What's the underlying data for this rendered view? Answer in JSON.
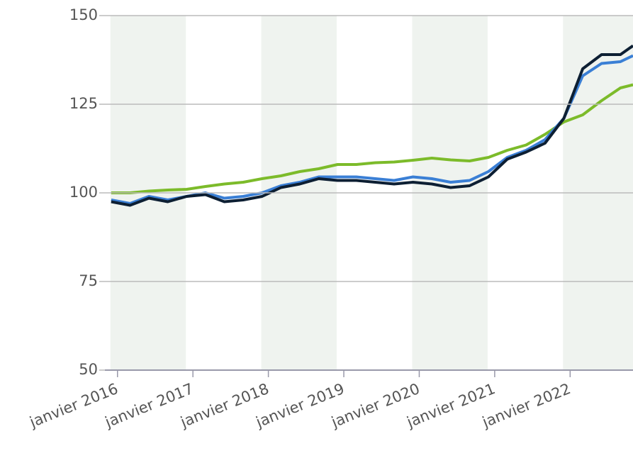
{
  "chart_data": {
    "type": "line",
    "x": [
      "2015-12",
      "2016-03",
      "2016-06",
      "2016-09",
      "2016-12",
      "2017-03",
      "2017-06",
      "2017-09",
      "2017-12",
      "2018-03",
      "2018-06",
      "2018-09",
      "2018-12",
      "2019-03",
      "2019-06",
      "2019-09",
      "2019-12",
      "2020-03",
      "2020-06",
      "2020-09",
      "2020-12",
      "2021-03",
      "2021-06",
      "2021-09",
      "2021-12",
      "2022-03",
      "2022-06",
      "2022-09",
      "2022-11"
    ],
    "series": [
      {
        "color": "#7cbb2a",
        "values": [
          100,
          100,
          100.5,
          100.8,
          101,
          101.8,
          102.5,
          103,
          104,
          104.8,
          106,
          106.8,
          108,
          108,
          108.5,
          108.7,
          109.2,
          109.8,
          109.3,
          109,
          110,
          112,
          113.5,
          116.5,
          120,
          122,
          126,
          129.6,
          130.5
        ]
      },
      {
        "color": "#3a7fd5",
        "values": [
          98,
          97,
          99,
          98,
          99,
          100,
          98.5,
          99,
          100,
          102,
          103,
          104.5,
          104.5,
          104.5,
          104,
          103.5,
          104.5,
          104,
          103,
          103.5,
          106,
          110,
          112,
          115,
          121,
          133,
          136.5,
          137,
          138.7
        ]
      },
      {
        "color": "#0d1f33",
        "values": [
          97.5,
          96.5,
          98.5,
          97.5,
          99,
          99.5,
          97.5,
          98,
          99,
          101.5,
          102.5,
          104,
          103.5,
          103.5,
          103,
          102.5,
          103,
          102.5,
          101.5,
          102,
          104.5,
          109.5,
          111.5,
          114,
          121,
          135,
          139,
          139,
          141.5
        ]
      }
    ],
    "xlim": [
      "2015-11",
      "2022-11"
    ],
    "xticks": [
      {
        "value": "2016-01",
        "label": "janvier 2016"
      },
      {
        "value": "2017-01",
        "label": "janvier 2017"
      },
      {
        "value": "2018-01",
        "label": "janvier 2018"
      },
      {
        "value": "2019-01",
        "label": "janvier 2019"
      },
      {
        "value": "2020-01",
        "label": "janvier 2020"
      },
      {
        "value": "2021-01",
        "label": "janvier 2021"
      },
      {
        "value": "2022-01",
        "label": "janvier 2022"
      }
    ],
    "ylim": [
      50,
      150
    ],
    "yticks": [
      50,
      75,
      100,
      125,
      150
    ],
    "grid": true
  }
}
